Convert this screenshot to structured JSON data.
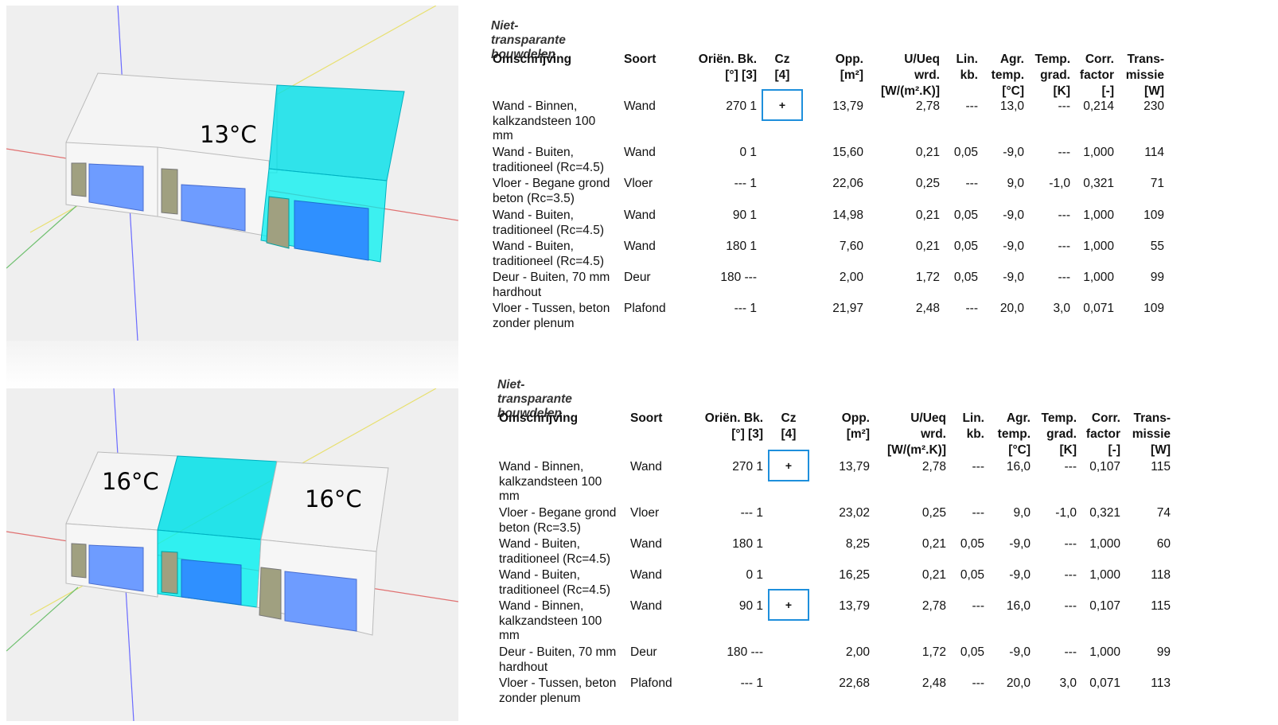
{
  "viewports": {
    "top": {
      "labels": [
        "13°C"
      ]
    },
    "bottom": {
      "labels": [
        "16°C",
        "16°C"
      ]
    }
  },
  "tables": [
    {
      "title": "Niet-transparante bouwdelen",
      "headers": {
        "omschrijving": "Omschrijving",
        "soort": "Soort",
        "orien": "Oriën. Bk.\n[°] [3]",
        "cz": "Cz\n[4]",
        "opp": "Opp.\n[m²]",
        "u": "U/Ueq\nwrd.\n[W/(m².K)]",
        "lin": "Lin.\nkb.",
        "agr": "Agr.\ntemp.\n[°C]",
        "tempgrad": "Temp.\ngrad.\n[K]",
        "corr": "Corr.\nfactor\n[-]",
        "trans": "Trans-\nmissie\n[W]"
      },
      "rows": [
        {
          "omschrijving": "Wand - Binnen,\nkalkzandsteen 100\nmm",
          "soort": "Wand",
          "orien": "270 1",
          "cz": "+",
          "opp": "13,79",
          "u": "2,78",
          "lin": "---",
          "agr": "13,0",
          "tempgrad": "---",
          "corr": "0,214",
          "trans": "230"
        },
        {
          "omschrijving": "Wand - Buiten,\ntraditioneel (Rc=4.5)",
          "soort": "Wand",
          "orien": "0 1",
          "cz": "",
          "opp": "15,60",
          "u": "0,21",
          "lin": "0,05",
          "agr": "-9,0",
          "tempgrad": "---",
          "corr": "1,000",
          "trans": "114"
        },
        {
          "omschrijving": "Vloer - Begane grond\nbeton (Rc=3.5)",
          "soort": "Vloer",
          "orien": "--- 1",
          "cz": "",
          "opp": "22,06",
          "u": "0,25",
          "lin": "---",
          "agr": "9,0",
          "tempgrad": "-1,0",
          "corr": "0,321",
          "trans": "71"
        },
        {
          "omschrijving": "Wand - Buiten,\ntraditioneel (Rc=4.5)",
          "soort": "Wand",
          "orien": "90 1",
          "cz": "",
          "opp": "14,98",
          "u": "0,21",
          "lin": "0,05",
          "agr": "-9,0",
          "tempgrad": "---",
          "corr": "1,000",
          "trans": "109"
        },
        {
          "omschrijving": "Wand - Buiten,\ntraditioneel (Rc=4.5)",
          "soort": "Wand",
          "orien": "180 1",
          "cz": "",
          "opp": "7,60",
          "u": "0,21",
          "lin": "0,05",
          "agr": "-9,0",
          "tempgrad": "---",
          "corr": "1,000",
          "trans": "55"
        },
        {
          "omschrijving": "Deur - Buiten, 70 mm\nhardhout",
          "soort": "Deur",
          "orien": "180 ---",
          "cz": "",
          "opp": "2,00",
          "u": "1,72",
          "lin": "0,05",
          "agr": "-9,0",
          "tempgrad": "---",
          "corr": "1,000",
          "trans": "99"
        },
        {
          "omschrijving": "Vloer - Tussen, beton\nzonder plenum",
          "soort": "Plafond",
          "orien": "--- 1",
          "cz": "",
          "opp": "21,97",
          "u": "2,48",
          "lin": "---",
          "agr": "20,0",
          "tempgrad": "3,0",
          "corr": "0,071",
          "trans": "109"
        }
      ]
    },
    {
      "title": "Niet-transparante bouwdelen",
      "headers": {
        "omschrijving": "Omschrijving",
        "soort": "Soort",
        "orien": "Oriën. Bk.\n[°] [3]",
        "cz": "Cz\n[4]",
        "opp": "Opp.\n[m²]",
        "u": "U/Ueq\nwrd.\n[W/(m².K)]",
        "lin": "Lin.\nkb.",
        "agr": "Agr.\ntemp.\n[°C]",
        "tempgrad": "Temp.\ngrad.\n[K]",
        "corr": "Corr.\nfactor\n[-]",
        "trans": "Trans-\nmissie\n[W]"
      },
      "rows": [
        {
          "omschrijving": "Wand - Binnen,\nkalkzandsteen 100\nmm",
          "soort": "Wand",
          "orien": "270 1",
          "cz": "+",
          "opp": "13,79",
          "u": "2,78",
          "lin": "---",
          "agr": "16,0",
          "tempgrad": "---",
          "corr": "0,107",
          "trans": "115"
        },
        {
          "omschrijving": "Vloer - Begane grond\nbeton (Rc=3.5)",
          "soort": "Vloer",
          "orien": "--- 1",
          "cz": "",
          "opp": "23,02",
          "u": "0,25",
          "lin": "---",
          "agr": "9,0",
          "tempgrad": "-1,0",
          "corr": "0,321",
          "trans": "74"
        },
        {
          "omschrijving": "Wand - Buiten,\ntraditioneel (Rc=4.5)",
          "soort": "Wand",
          "orien": "180 1",
          "cz": "",
          "opp": "8,25",
          "u": "0,21",
          "lin": "0,05",
          "agr": "-9,0",
          "tempgrad": "---",
          "corr": "1,000",
          "trans": "60"
        },
        {
          "omschrijving": "Wand - Buiten,\ntraditioneel (Rc=4.5)",
          "soort": "Wand",
          "orien": "0 1",
          "cz": "",
          "opp": "16,25",
          "u": "0,21",
          "lin": "0,05",
          "agr": "-9,0",
          "tempgrad": "---",
          "corr": "1,000",
          "trans": "118"
        },
        {
          "omschrijving": "Wand - Binnen,\nkalkzandsteen 100\nmm",
          "soort": "Wand",
          "orien": "90 1",
          "cz": "+",
          "opp": "13,79",
          "u": "2,78",
          "lin": "---",
          "agr": "16,0",
          "tempgrad": "---",
          "corr": "0,107",
          "trans": "115"
        },
        {
          "omschrijving": "Deur - Buiten, 70 mm\nhardhout",
          "soort": "Deur",
          "orien": "180 ---",
          "cz": "",
          "opp": "2,00",
          "u": "1,72",
          "lin": "0,05",
          "agr": "-9,0",
          "tempgrad": "---",
          "corr": "1,000",
          "trans": "99"
        },
        {
          "omschrijving": "Vloer - Tussen, beton\nzonder plenum",
          "soort": "Plafond",
          "orien": "--- 1",
          "cz": "",
          "opp": "22,68",
          "u": "2,48",
          "lin": "---",
          "agr": "20,0",
          "tempgrad": "3,0",
          "corr": "0,071",
          "trans": "113"
        }
      ]
    }
  ]
}
